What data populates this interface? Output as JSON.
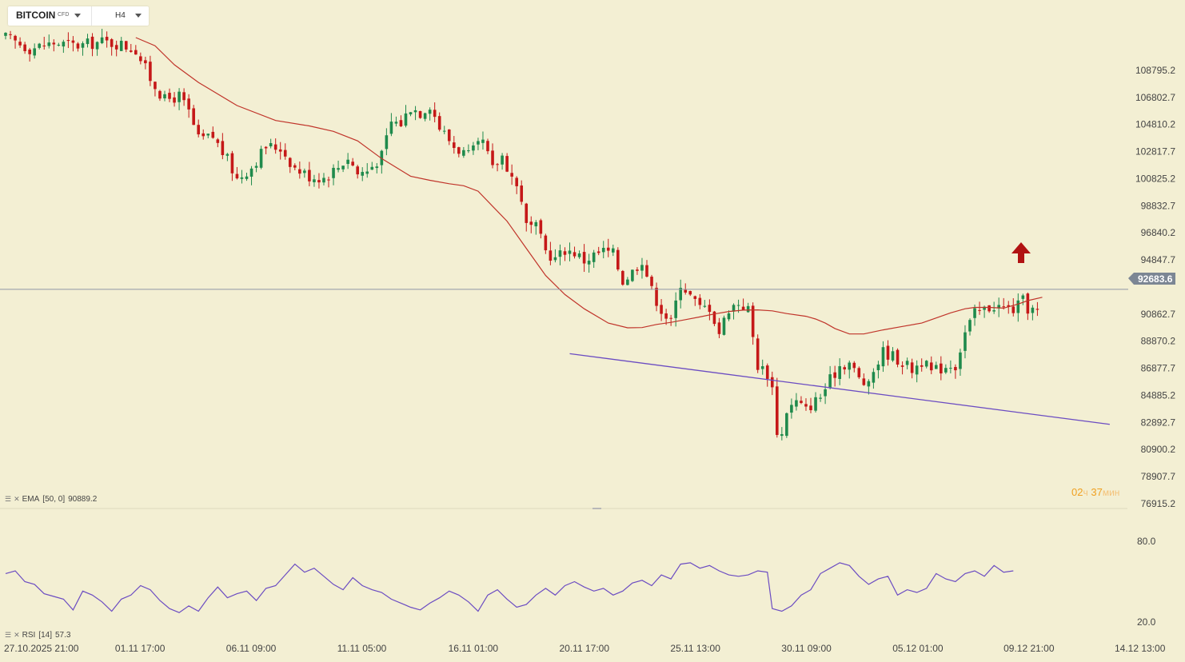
{
  "header": {
    "symbol": "BITCOIN",
    "symbol_type": "CFD",
    "timeframe": "H4",
    "symbol_caret_icon": "chevron-down-icon",
    "timeframe_caret_icon": "chevron-down-icon"
  },
  "indicators": {
    "ema_label": "EMA",
    "ema_params": "[50, 0]",
    "ema_value": "90889.2",
    "rsi_label": "RSI",
    "rsi_params": "[14]",
    "rsi_value": "57.3"
  },
  "countdown": {
    "hours": "02",
    "hours_unit": "ч",
    "minutes": "37",
    "minutes_unit": "мин"
  },
  "colors": {
    "background": "#f3efd3",
    "bull": "#1f8a4c",
    "bear": "#c51818",
    "ema": "#c0342a",
    "trendline": "#6b4cc2",
    "rsi": "#6b4cc2",
    "price_tag": "#7c8694",
    "arrow": "#b11212"
  },
  "chart_data": {
    "type": "candlestick",
    "symbol": "BITCOIN",
    "timeframe": "H4",
    "current_price": "92683.6",
    "ylim": [
      76915.2,
      110787.7
    ],
    "price_ticks": [
      "108795.2",
      "106802.7",
      "104810.2",
      "102817.7",
      "100825.2",
      "98832.7",
      "96840.2",
      "94847.7",
      "90862.7",
      "88870.2",
      "86877.7",
      "84885.2",
      "82892.7",
      "80900.2",
      "78907.7",
      "76915.2"
    ],
    "x_ticks": [
      "27.10.2025  21:00",
      "01.11  17:00",
      "06.11  09:00",
      "11.11  05:00",
      "16.11  01:00",
      "20.11  17:00",
      "25.11  13:00",
      "30.11  09:00",
      "05.12  01:00",
      "09.12  21:00",
      "14.12  13:00"
    ],
    "candle_count": 215,
    "close_path": [
      [
        0,
        111200
      ],
      [
        5,
        110400
      ],
      [
        10,
        110800
      ],
      [
        15,
        110600
      ],
      [
        20,
        110900
      ],
      [
        24,
        110700
      ],
      [
        27,
        110300
      ],
      [
        30,
        108200
      ],
      [
        33,
        106600
      ],
      [
        36,
        106900
      ],
      [
        38,
        105700
      ],
      [
        40,
        103700
      ],
      [
        43,
        103900
      ],
      [
        46,
        102200
      ],
      [
        48,
        100800
      ],
      [
        51,
        101700
      ],
      [
        54,
        103200
      ],
      [
        57,
        103100
      ],
      [
        60,
        101600
      ],
      [
        63,
        101000
      ],
      [
        66,
        100900
      ],
      [
        69,
        101700
      ],
      [
        71,
        102400
      ],
      [
        73,
        101200
      ],
      [
        75,
        101400
      ],
      [
        78,
        102500
      ],
      [
        80,
        105000
      ],
      [
        82,
        104900
      ],
      [
        84,
        106100
      ],
      [
        86,
        105700
      ],
      [
        88,
        106300
      ],
      [
        90,
        104600
      ],
      [
        93,
        103200
      ],
      [
        96,
        102500
      ],
      [
        99,
        103500
      ],
      [
        101,
        101500
      ],
      [
        103,
        102500
      ],
      [
        105,
        101000
      ],
      [
        107,
        99400
      ],
      [
        108,
        97300
      ],
      [
        110,
        97200
      ],
      [
        112,
        95500
      ],
      [
        114,
        94900
      ],
      [
        116,
        95600
      ],
      [
        118,
        95400
      ],
      [
        120,
        94800
      ],
      [
        122,
        95200
      ],
      [
        124,
        95500
      ],
      [
        126,
        95300
      ],
      [
        128,
        93300
      ],
      [
        130,
        94000
      ],
      [
        132,
        94900
      ],
      [
        134,
        92600
      ],
      [
        136,
        91200
      ],
      [
        138,
        90200
      ],
      [
        140,
        93200
      ],
      [
        142,
        92200
      ],
      [
        144,
        91300
      ],
      [
        146,
        91400
      ],
      [
        148,
        89500
      ],
      [
        150,
        91300
      ],
      [
        152,
        91700
      ],
      [
        154,
        91200
      ],
      [
        156,
        87100
      ],
      [
        158,
        86500
      ],
      [
        159,
        85400
      ],
      [
        160,
        82300
      ],
      [
        161,
        82000
      ],
      [
        162,
        83800
      ],
      [
        164,
        84400
      ],
      [
        166,
        83800
      ],
      [
        167,
        84200
      ],
      [
        169,
        84800
      ],
      [
        171,
        86000
      ],
      [
        173,
        87100
      ],
      [
        175,
        87300
      ],
      [
        177,
        86100
      ],
      [
        179,
        85500
      ],
      [
        180,
        86700
      ],
      [
        182,
        88100
      ],
      [
        184,
        87800
      ],
      [
        186,
        87300
      ],
      [
        188,
        86800
      ],
      [
        190,
        87400
      ],
      [
        192,
        86600
      ],
      [
        194,
        86900
      ],
      [
        196,
        87200
      ],
      [
        197,
        87100
      ],
      [
        199,
        89500
      ],
      [
        201,
        90900
      ],
      [
        203,
        91200
      ],
      [
        205,
        91500
      ],
      [
        207,
        91300
      ],
      [
        209,
        91200
      ],
      [
        211,
        91800
      ],
      [
        212,
        91300
      ],
      [
        214,
        91000
      ],
      [
        216,
        90900
      ]
    ],
    "ema": {
      "name": "EMA",
      "period": 50,
      "last_value": 90889.2,
      "points": [
        [
          27,
          111200
        ],
        [
          31,
          110600
        ],
        [
          35,
          109200
        ],
        [
          40,
          107900
        ],
        [
          48,
          106200
        ],
        [
          56,
          105100
        ],
        [
          63,
          104700
        ],
        [
          68,
          104300
        ],
        [
          73,
          103600
        ],
        [
          78,
          102300
        ],
        [
          84,
          101000
        ],
        [
          88,
          100700
        ],
        [
          92,
          100450
        ],
        [
          95,
          100300
        ],
        [
          98,
          99900
        ],
        [
          101,
          98800
        ],
        [
          104,
          97700
        ],
        [
          108,
          95700
        ],
        [
          112,
          93700
        ],
        [
          116,
          92300
        ],
        [
          120,
          91250
        ],
        [
          125,
          90200
        ],
        [
          129,
          89850
        ],
        [
          132,
          89870
        ],
        [
          135,
          90100
        ],
        [
          138,
          90250
        ],
        [
          141,
          90450
        ],
        [
          144,
          90650
        ],
        [
          147,
          90870
        ],
        [
          150,
          91050
        ],
        [
          153,
          91150
        ],
        [
          156,
          91170
        ],
        [
          159,
          91100
        ],
        [
          162,
          90900
        ],
        [
          166,
          90700
        ],
        [
          168,
          90500
        ],
        [
          170,
          90200
        ],
        [
          172,
          89800
        ],
        [
          175,
          89400
        ],
        [
          178,
          89400
        ],
        [
          182,
          89700
        ],
        [
          186,
          89950
        ],
        [
          190,
          90200
        ],
        [
          192,
          90450
        ],
        [
          196,
          90950
        ],
        [
          199,
          91250
        ],
        [
          201,
          91350
        ],
        [
          204,
          91350
        ],
        [
          207,
          91300
        ],
        [
          210,
          91600
        ],
        [
          212,
          91850
        ],
        [
          215,
          92100
        ]
      ]
    },
    "trendline": {
      "from": [
        117,
        87950
      ],
      "to": [
        229,
        82750
      ]
    },
    "rsi": {
      "name": "RSI",
      "period": 14,
      "last_value": 57.3,
      "levels": [
        80,
        20
      ],
      "points": [
        [
          0,
          56
        ],
        [
          2,
          58
        ],
        [
          4,
          50
        ],
        [
          6,
          48
        ],
        [
          8,
          41
        ],
        [
          10,
          39
        ],
        [
          12,
          37
        ],
        [
          14,
          29
        ],
        [
          16,
          43
        ],
        [
          18,
          40
        ],
        [
          20,
          35
        ],
        [
          22,
          28
        ],
        [
          24,
          37
        ],
        [
          26,
          40
        ],
        [
          28,
          47
        ],
        [
          30,
          44
        ],
        [
          32,
          36
        ],
        [
          34,
          30
        ],
        [
          36,
          27
        ],
        [
          38,
          32
        ],
        [
          40,
          28
        ],
        [
          42,
          38
        ],
        [
          44,
          46
        ],
        [
          46,
          38
        ],
        [
          48,
          41
        ],
        [
          50,
          43
        ],
        [
          52,
          36
        ],
        [
          54,
          45
        ],
        [
          56,
          47
        ],
        [
          58,
          55
        ],
        [
          60,
          63
        ],
        [
          62,
          57
        ],
        [
          64,
          60
        ],
        [
          66,
          54
        ],
        [
          68,
          48
        ],
        [
          70,
          44
        ],
        [
          72,
          53
        ],
        [
          74,
          47
        ],
        [
          76,
          44
        ],
        [
          78,
          42
        ],
        [
          80,
          37
        ],
        [
          82,
          34
        ],
        [
          84,
          31
        ],
        [
          86,
          29
        ],
        [
          88,
          34
        ],
        [
          90,
          38
        ],
        [
          92,
          43
        ],
        [
          94,
          40
        ],
        [
          96,
          35
        ],
        [
          98,
          28
        ],
        [
          100,
          40
        ],
        [
          102,
          44
        ],
        [
          104,
          37
        ],
        [
          106,
          31
        ],
        [
          108,
          33
        ],
        [
          110,
          40
        ],
        [
          112,
          45
        ],
        [
          114,
          40
        ],
        [
          116,
          47
        ],
        [
          118,
          50
        ],
        [
          120,
          46
        ],
        [
          122,
          43
        ],
        [
          124,
          45
        ],
        [
          126,
          40
        ],
        [
          128,
          43
        ],
        [
          130,
          49
        ],
        [
          132,
          51
        ],
        [
          134,
          47
        ],
        [
          136,
          55
        ],
        [
          138,
          52
        ],
        [
          140,
          63
        ],
        [
          142,
          64
        ],
        [
          144,
          60
        ],
        [
          146,
          62
        ],
        [
          148,
          58
        ],
        [
          150,
          55
        ],
        [
          152,
          54
        ],
        [
          154,
          55
        ],
        [
          156,
          58
        ],
        [
          158,
          57
        ],
        [
          159,
          30
        ],
        [
          161,
          28
        ],
        [
          163,
          32
        ],
        [
          165,
          40
        ],
        [
          167,
          44
        ],
        [
          169,
          56
        ],
        [
          171,
          60
        ],
        [
          173,
          64
        ],
        [
          175,
          62
        ],
        [
          177,
          54
        ],
        [
          179,
          48
        ],
        [
          181,
          52
        ],
        [
          183,
          54
        ],
        [
          185,
          40
        ],
        [
          187,
          44
        ],
        [
          189,
          42
        ],
        [
          191,
          45
        ],
        [
          193,
          56
        ],
        [
          195,
          52
        ],
        [
          197,
          50
        ],
        [
          199,
          56
        ],
        [
          201,
          58
        ],
        [
          203,
          54
        ],
        [
          205,
          62
        ],
        [
          207,
          57
        ],
        [
          209,
          58
        ]
      ],
      "x_offset_candles": 0
    }
  }
}
